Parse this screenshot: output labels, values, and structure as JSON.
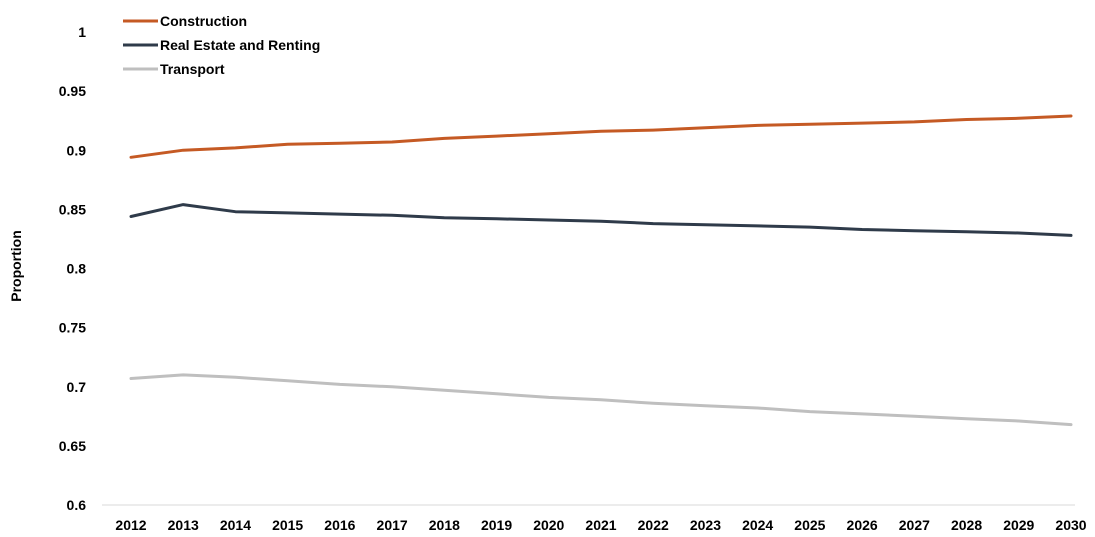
{
  "chart_data": {
    "type": "line",
    "title": "",
    "xlabel": "",
    "ylabel": "Proportion",
    "ylim": [
      0.6,
      1
    ],
    "yticks": [
      "0.6",
      "0.65",
      "0.7",
      "0.75",
      "0.8",
      "0.85",
      "0.9",
      "0.95",
      "1"
    ],
    "grid": false,
    "legend_position": "top-left",
    "x": [
      "2012",
      "2013",
      "2014",
      "2015",
      "2016",
      "2017",
      "2018",
      "2019",
      "2020",
      "2021",
      "2022",
      "2023",
      "2024",
      "2025",
      "2026",
      "2027",
      "2028",
      "2029",
      "2030"
    ],
    "series": [
      {
        "name": "Construction",
        "color": "#c55a24",
        "values": [
          0.894,
          0.9,
          0.902,
          0.905,
          0.906,
          0.907,
          0.91,
          0.912,
          0.914,
          0.916,
          0.917,
          0.919,
          0.921,
          0.922,
          0.923,
          0.924,
          0.926,
          0.927,
          0.929
        ]
      },
      {
        "name": "Real Estate and Renting",
        "color": "#2f3b4a",
        "values": [
          0.844,
          0.854,
          0.848,
          0.847,
          0.846,
          0.845,
          0.843,
          0.842,
          0.841,
          0.84,
          0.838,
          0.837,
          0.836,
          0.835,
          0.833,
          0.832,
          0.831,
          0.83,
          0.828
        ]
      },
      {
        "name": "Transport",
        "color": "#bfbfbf",
        "values": [
          0.707,
          0.71,
          0.708,
          0.705,
          0.702,
          0.7,
          0.697,
          0.694,
          0.691,
          0.689,
          0.686,
          0.684,
          0.682,
          0.679,
          0.677,
          0.675,
          0.673,
          0.671,
          0.668
        ]
      }
    ]
  }
}
